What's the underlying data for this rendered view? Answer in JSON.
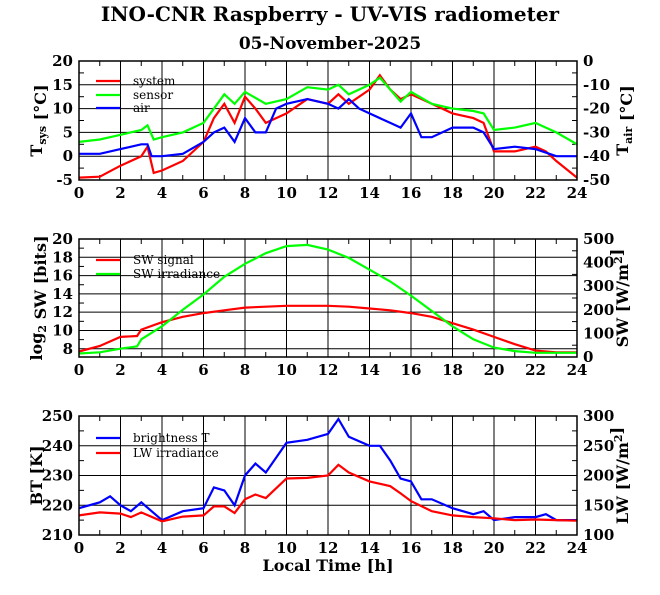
{
  "title": "INO-CNR Raspberry - UV-VIS radiometer",
  "subtitle": "05-November-2025",
  "xlabel": "Local Time [h]",
  "colors": {
    "red": "#ff0000",
    "green": "#00ff00",
    "blue": "#0000ff",
    "grid": "#000000"
  },
  "chart_data": [
    {
      "type": "line",
      "xlim": [
        0,
        24
      ],
      "xticks": [
        0,
        2,
        4,
        6,
        8,
        10,
        12,
        14,
        16,
        18,
        20,
        22,
        24
      ],
      "ylim": [
        -5,
        20
      ],
      "yticks": [
        -5,
        0,
        5,
        10,
        15,
        20
      ],
      "y2lim": [
        -50,
        0
      ],
      "y2ticks": [
        -50,
        -40,
        -30,
        -20,
        -10,
        0
      ],
      "grid": true,
      "legend": "top-left",
      "ylabel": [
        {
          "t": "T"
        },
        {
          "t": "sys",
          "s": "sub"
        },
        {
          "t": " [°C]"
        }
      ],
      "y2label": [
        {
          "t": "T"
        },
        {
          "t": "air",
          "s": "sub"
        },
        {
          "t": " [°C]"
        }
      ],
      "series": [
        {
          "name": "system",
          "color": "#ff0000",
          "axis": "left",
          "x": [
            0,
            1,
            2,
            3,
            3.3,
            3.6,
            4,
            5,
            6,
            6.5,
            7,
            7.5,
            8,
            8.5,
            9,
            10,
            11,
            12,
            12.5,
            13,
            14,
            14.5,
            15,
            15.5,
            16,
            17,
            18,
            19,
            19.5,
            20,
            21,
            22,
            22.5,
            23,
            24
          ],
          "y": [
            -4.5,
            -4.3,
            -2,
            0,
            2,
            -3.5,
            -3,
            -1,
            3,
            8,
            11,
            7,
            12.5,
            10,
            7,
            9,
            12,
            11,
            13,
            11,
            14,
            17,
            14,
            12,
            13,
            11,
            9,
            8,
            7,
            1,
            1,
            2,
            1,
            -1,
            -4.5
          ]
        },
        {
          "name": "sensor",
          "color": "#00ff00",
          "axis": "left",
          "x": [
            0,
            1,
            2,
            3,
            3.3,
            3.6,
            4,
            5,
            6,
            7,
            7.5,
            8,
            9,
            10,
            11,
            12,
            12.5,
            13,
            14,
            14.5,
            15,
            15.5,
            16,
            17,
            18,
            19,
            19.5,
            20,
            21,
            22,
            23,
            24
          ],
          "y": [
            3,
            3.5,
            4.5,
            5.5,
            6.5,
            3.5,
            4,
            5,
            7,
            13,
            11,
            13.5,
            11,
            12,
            14.5,
            14,
            15,
            13,
            15,
            16.5,
            14,
            11.5,
            13.5,
            11,
            10,
            9.5,
            9,
            5.5,
            6,
            7,
            5,
            2.5
          ]
        },
        {
          "name": "air",
          "color": "#0000ff",
          "axis": "right",
          "x": [
            0,
            1,
            2,
            3,
            3.3,
            3.5,
            4,
            5,
            6,
            6.5,
            7,
            7.5,
            8,
            8.5,
            9,
            9.5,
            10,
            11,
            12,
            12.5,
            13,
            13.5,
            14,
            15,
            15.5,
            16,
            16.5,
            17,
            18,
            19,
            19.5,
            20,
            21,
            22,
            23,
            24
          ],
          "y": [
            -39,
            -39,
            -37,
            -35,
            -35,
            -40,
            -40,
            -39,
            -34,
            -30,
            -28,
            -34,
            -24,
            -30,
            -30,
            -20,
            -18,
            -16,
            -18,
            -20,
            -16,
            -20,
            -22,
            -26,
            -28,
            -22,
            -32,
            -32,
            -28,
            -28,
            -30,
            -37,
            -36,
            -37,
            -40,
            -40
          ]
        }
      ]
    },
    {
      "type": "line",
      "xlim": [
        0,
        24
      ],
      "xticks": [
        0,
        2,
        4,
        6,
        8,
        10,
        12,
        14,
        16,
        18,
        20,
        22,
        24
      ],
      "ylim": [
        7.1,
        20
      ],
      "yticks": [
        8,
        10,
        12,
        14,
        16,
        18,
        20
      ],
      "y2lim": [
        0,
        500
      ],
      "y2ticks": [
        0,
        100,
        200,
        300,
        400,
        500
      ],
      "grid": true,
      "legend": "top-left",
      "ylabel": [
        {
          "t": "log"
        },
        {
          "t": "2",
          "s": "sub"
        },
        {
          "t": " SW [bits]"
        }
      ],
      "y2label": [
        {
          "t": "SW [W/m"
        },
        {
          "t": "2",
          "s": "sup"
        },
        {
          "t": "]"
        }
      ],
      "series": [
        {
          "name": "SW signal",
          "color": "#ff0000",
          "axis": "left",
          "x": [
            0,
            1,
            2,
            2.8,
            3,
            4,
            5,
            6,
            7,
            8,
            9,
            10,
            11,
            12,
            13,
            14,
            15,
            16,
            17,
            18,
            19,
            20,
            21,
            22,
            23,
            24
          ],
          "y": [
            7.7,
            8.3,
            9.3,
            9.4,
            10.1,
            10.9,
            11.5,
            11.9,
            12.2,
            12.5,
            12.6,
            12.7,
            12.7,
            12.7,
            12.6,
            12.4,
            12.2,
            11.9,
            11.5,
            10.8,
            10.1,
            9.3,
            8.5,
            7.8,
            7.6,
            7.6
          ]
        },
        {
          "name": "SW irradiance",
          "color": "#00ff00",
          "axis": "right",
          "x": [
            0,
            1,
            2,
            2.8,
            3,
            4,
            5,
            6,
            7,
            8,
            9,
            10,
            11,
            12,
            13,
            14,
            15,
            16,
            17,
            18,
            19,
            20,
            21,
            22,
            23,
            24
          ],
          "y": [
            15,
            20,
            35,
            45,
            75,
            130,
            200,
            265,
            340,
            395,
            440,
            470,
            475,
            455,
            420,
            370,
            320,
            260,
            195,
            130,
            75,
            40,
            25,
            18,
            18,
            18
          ]
        }
      ]
    },
    {
      "type": "line",
      "xlim": [
        0,
        24
      ],
      "xticks": [
        0,
        2,
        4,
        6,
        8,
        10,
        12,
        14,
        16,
        18,
        20,
        22,
        24
      ],
      "ylim": [
        210,
        250
      ],
      "yticks": [
        210,
        220,
        230,
        240,
        250
      ],
      "y2lim": [
        100,
        300
      ],
      "y2ticks": [
        100,
        150,
        200,
        250,
        300
      ],
      "grid": true,
      "legend": "top-left",
      "ylabel": [
        {
          "t": "BT [K]"
        }
      ],
      "y2label": [
        {
          "t": "LW [W/m"
        },
        {
          "t": "2",
          "s": "sup"
        },
        {
          "t": "]"
        }
      ],
      "series": [
        {
          "name": "brightness T",
          "color": "#0000ff",
          "axis": "left",
          "x": [
            0,
            1,
            1.5,
            2,
            2.5,
            3,
            3.5,
            4,
            5,
            6,
            6.5,
            7,
            7.5,
            8,
            8.5,
            9,
            10,
            11,
            12,
            12.5,
            13,
            14,
            14.5,
            15,
            15.5,
            16,
            16.5,
            17,
            18,
            19,
            19.5,
            20,
            21,
            22,
            22.5,
            23,
            24
          ],
          "y": [
            219,
            221,
            223,
            220,
            218,
            221,
            218,
            215,
            218,
            219,
            226,
            225,
            220,
            230,
            234,
            231,
            241,
            242,
            244,
            249,
            243,
            240,
            240,
            235,
            229,
            228,
            222,
            222,
            219,
            217,
            218,
            215,
            216,
            216,
            217,
            215,
            215
          ]
        },
        {
          "name": "LW irradiance",
          "color": "#ff0000",
          "axis": "right",
          "x": [
            0,
            1,
            2,
            2.5,
            3,
            4,
            5,
            6,
            6.5,
            7,
            7.5,
            8,
            8.5,
            9,
            10,
            11,
            12,
            12.5,
            13,
            14,
            15,
            15.5,
            16,
            17,
            18,
            19,
            20,
            21,
            22,
            23,
            24
          ],
          "y": [
            133,
            138,
            136,
            130,
            138,
            123,
            131,
            133,
            148,
            148,
            137,
            160,
            168,
            162,
            195,
            196,
            200,
            218,
            205,
            190,
            182,
            170,
            157,
            140,
            133,
            130,
            128,
            125,
            126,
            125,
            124
          ]
        }
      ]
    }
  ]
}
